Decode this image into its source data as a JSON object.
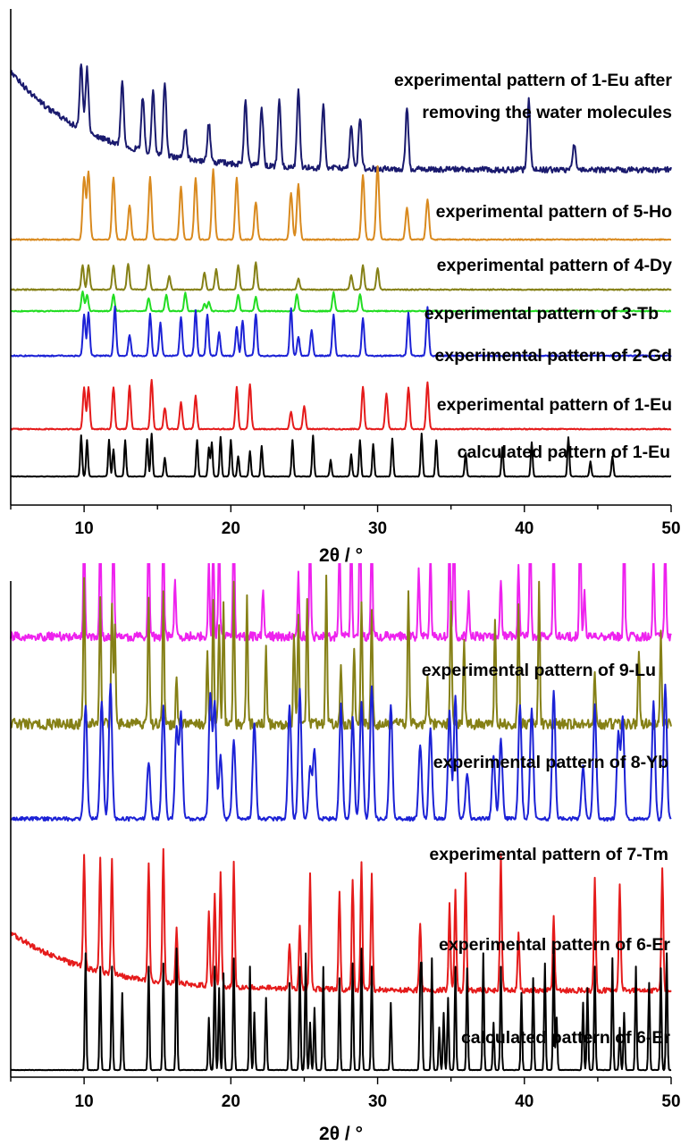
{
  "chart_data": [
    {
      "type": "line",
      "xlabel": "2θ / °",
      "xlim": [
        5,
        50
      ],
      "x_ticks": [
        10,
        20,
        30,
        40,
        50
      ],
      "series": [
        {
          "name": "experimental pattern of 1-Eu after removing the water molecules",
          "label_lines": [
            "experimental pattern of 1-Eu after",
            "removing the water molecules"
          ],
          "color": "#1a1a6e",
          "peaks": [
            9.8,
            10.2,
            12.6,
            14.0,
            14.7,
            15.5,
            16.9,
            18.5,
            21.0,
            22.1,
            23.3,
            24.6,
            26.3,
            28.2,
            28.8,
            32.0,
            40.3,
            43.4
          ]
        },
        {
          "name": "experimental pattern of 5-Ho",
          "color": "#d98a1f",
          "peaks": [
            10.0,
            10.3,
            12.0,
            13.1,
            14.5,
            16.6,
            17.6,
            18.8,
            20.4,
            21.7,
            24.1,
            24.6,
            29.0,
            30.0,
            32.0,
            33.4
          ]
        },
        {
          "name": "experimental pattern of 4-Dy",
          "color": "#858016",
          "peaks": [
            9.9,
            10.3,
            12.0,
            13.0,
            14.4,
            15.8,
            18.2,
            19.0,
            20.5,
            21.7,
            24.6,
            28.2,
            29.0,
            30.0
          ]
        },
        {
          "name": "experimental pattern of 3-Tb",
          "color": "#22dd22",
          "peaks": [
            9.9,
            10.2,
            12.0,
            14.4,
            15.6,
            16.9,
            18.2,
            18.5,
            20.5,
            21.7,
            24.5,
            27.0,
            28.8
          ]
        },
        {
          "name": "experimental pattern of 2-Gd",
          "color": "#1c22d6",
          "peaks": [
            10.0,
            10.3,
            12.1,
            13.1,
            14.5,
            15.2,
            16.6,
            17.6,
            18.4,
            19.2,
            20.4,
            20.8,
            21.7,
            24.1,
            24.6,
            25.5,
            27.0,
            29.0,
            32.1,
            33.4
          ]
        },
        {
          "name": "experimental pattern of 1-Eu",
          "color": "#e51b1b",
          "peaks": [
            10.0,
            10.3,
            12.0,
            13.1,
            14.6,
            15.5,
            16.6,
            17.6,
            20.4,
            21.3,
            24.1,
            25.0,
            29.0,
            30.6,
            32.1,
            33.4
          ]
        },
        {
          "name": "calculated pattern of 1-Eu",
          "color": "#000000",
          "peaks": [
            9.8,
            10.2,
            11.7,
            12.0,
            12.8,
            14.3,
            14.6,
            15.5,
            17.7,
            18.5,
            18.7,
            19.3,
            20.0,
            20.5,
            21.3,
            22.1,
            24.2,
            25.6,
            26.8,
            28.2,
            28.8,
            29.7,
            31.0,
            33.0,
            34.0,
            36.0,
            38.5,
            40.5,
            43.0,
            44.5,
            46.0
          ]
        }
      ]
    },
    {
      "type": "line",
      "xlabel": "2θ / °",
      "xlim": [
        5,
        50
      ],
      "x_ticks": [
        10,
        20,
        30,
        40,
        50
      ],
      "series": [
        {
          "name": "experimental pattern of 9-Lu",
          "color": "#ee22ee",
          "peaks": [
            10.0,
            11.1,
            12.0,
            14.4,
            15.4,
            16.2,
            18.5,
            18.8,
            19.2,
            20.2,
            22.2,
            24.6,
            25.4,
            27.4,
            28.2,
            28.8,
            29.6,
            32.8,
            33.6,
            34.9,
            35.2,
            36.2,
            38.4,
            39.6,
            40.4,
            42.0,
            43.8,
            44.1,
            46.8,
            48.8,
            49.6
          ]
        },
        {
          "name": "experimental pattern of 8-Yb",
          "color": "#858016",
          "peaks": [
            10.0,
            11.1,
            11.9,
            12.1,
            14.4,
            15.4,
            16.3,
            18.4,
            18.8,
            19.2,
            19.5,
            20.2,
            21.1,
            22.4,
            24.3,
            24.6,
            25.2,
            26.5,
            27.5,
            28.4,
            28.9,
            29.6,
            32.1,
            33.4,
            35.0,
            35.9,
            38.0,
            39.6,
            41.0,
            44.8,
            47.8,
            49.3
          ]
        },
        {
          "name": "experimental pattern of 7-Tm",
          "color": "#1c22d6",
          "peaks": [
            10.1,
            11.2,
            11.8,
            14.4,
            15.4,
            16.3,
            16.6,
            18.6,
            18.9,
            19.3,
            20.2,
            21.6,
            24.0,
            24.7,
            25.4,
            25.7,
            27.5,
            28.3,
            28.9,
            29.6,
            30.9,
            32.9,
            33.6,
            34.9,
            35.3,
            36.1,
            37.9,
            38.4,
            39.7,
            40.5,
            42.0,
            44.0,
            44.8,
            46.4,
            46.7,
            48.8,
            49.6
          ]
        },
        {
          "name": "experimental pattern of 6-Er",
          "color": "#e51b1b",
          "peaks": [
            10.0,
            11.1,
            11.9,
            14.4,
            15.4,
            16.3,
            18.5,
            18.9,
            19.3,
            20.2,
            24.0,
            24.7,
            25.4,
            27.4,
            28.3,
            28.9,
            29.6,
            32.9,
            34.9,
            35.3,
            36.0,
            38.4,
            39.6,
            42.0,
            44.8,
            46.5,
            49.4
          ]
        },
        {
          "name": "calculated pattern of 6-Er",
          "color": "#000000",
          "peaks": [
            10.1,
            11.1,
            11.9,
            12.6,
            14.4,
            15.4,
            16.3,
            18.5,
            18.9,
            19.2,
            19.5,
            20.2,
            21.3,
            21.6,
            22.4,
            24.0,
            24.7,
            25.1,
            25.4,
            25.7,
            26.3,
            27.4,
            28.3,
            28.9,
            29.6,
            30.9,
            32.9,
            33.0,
            33.7,
            34.2,
            34.5,
            34.8,
            35.3,
            36.1,
            37.2,
            37.9,
            38.4,
            39.8,
            40.6,
            41.4,
            42.0,
            42.2,
            44.0,
            44.3,
            44.8,
            46.0,
            46.5,
            46.8,
            47.6,
            48.5,
            49.3,
            49.7
          ]
        }
      ]
    }
  ]
}
